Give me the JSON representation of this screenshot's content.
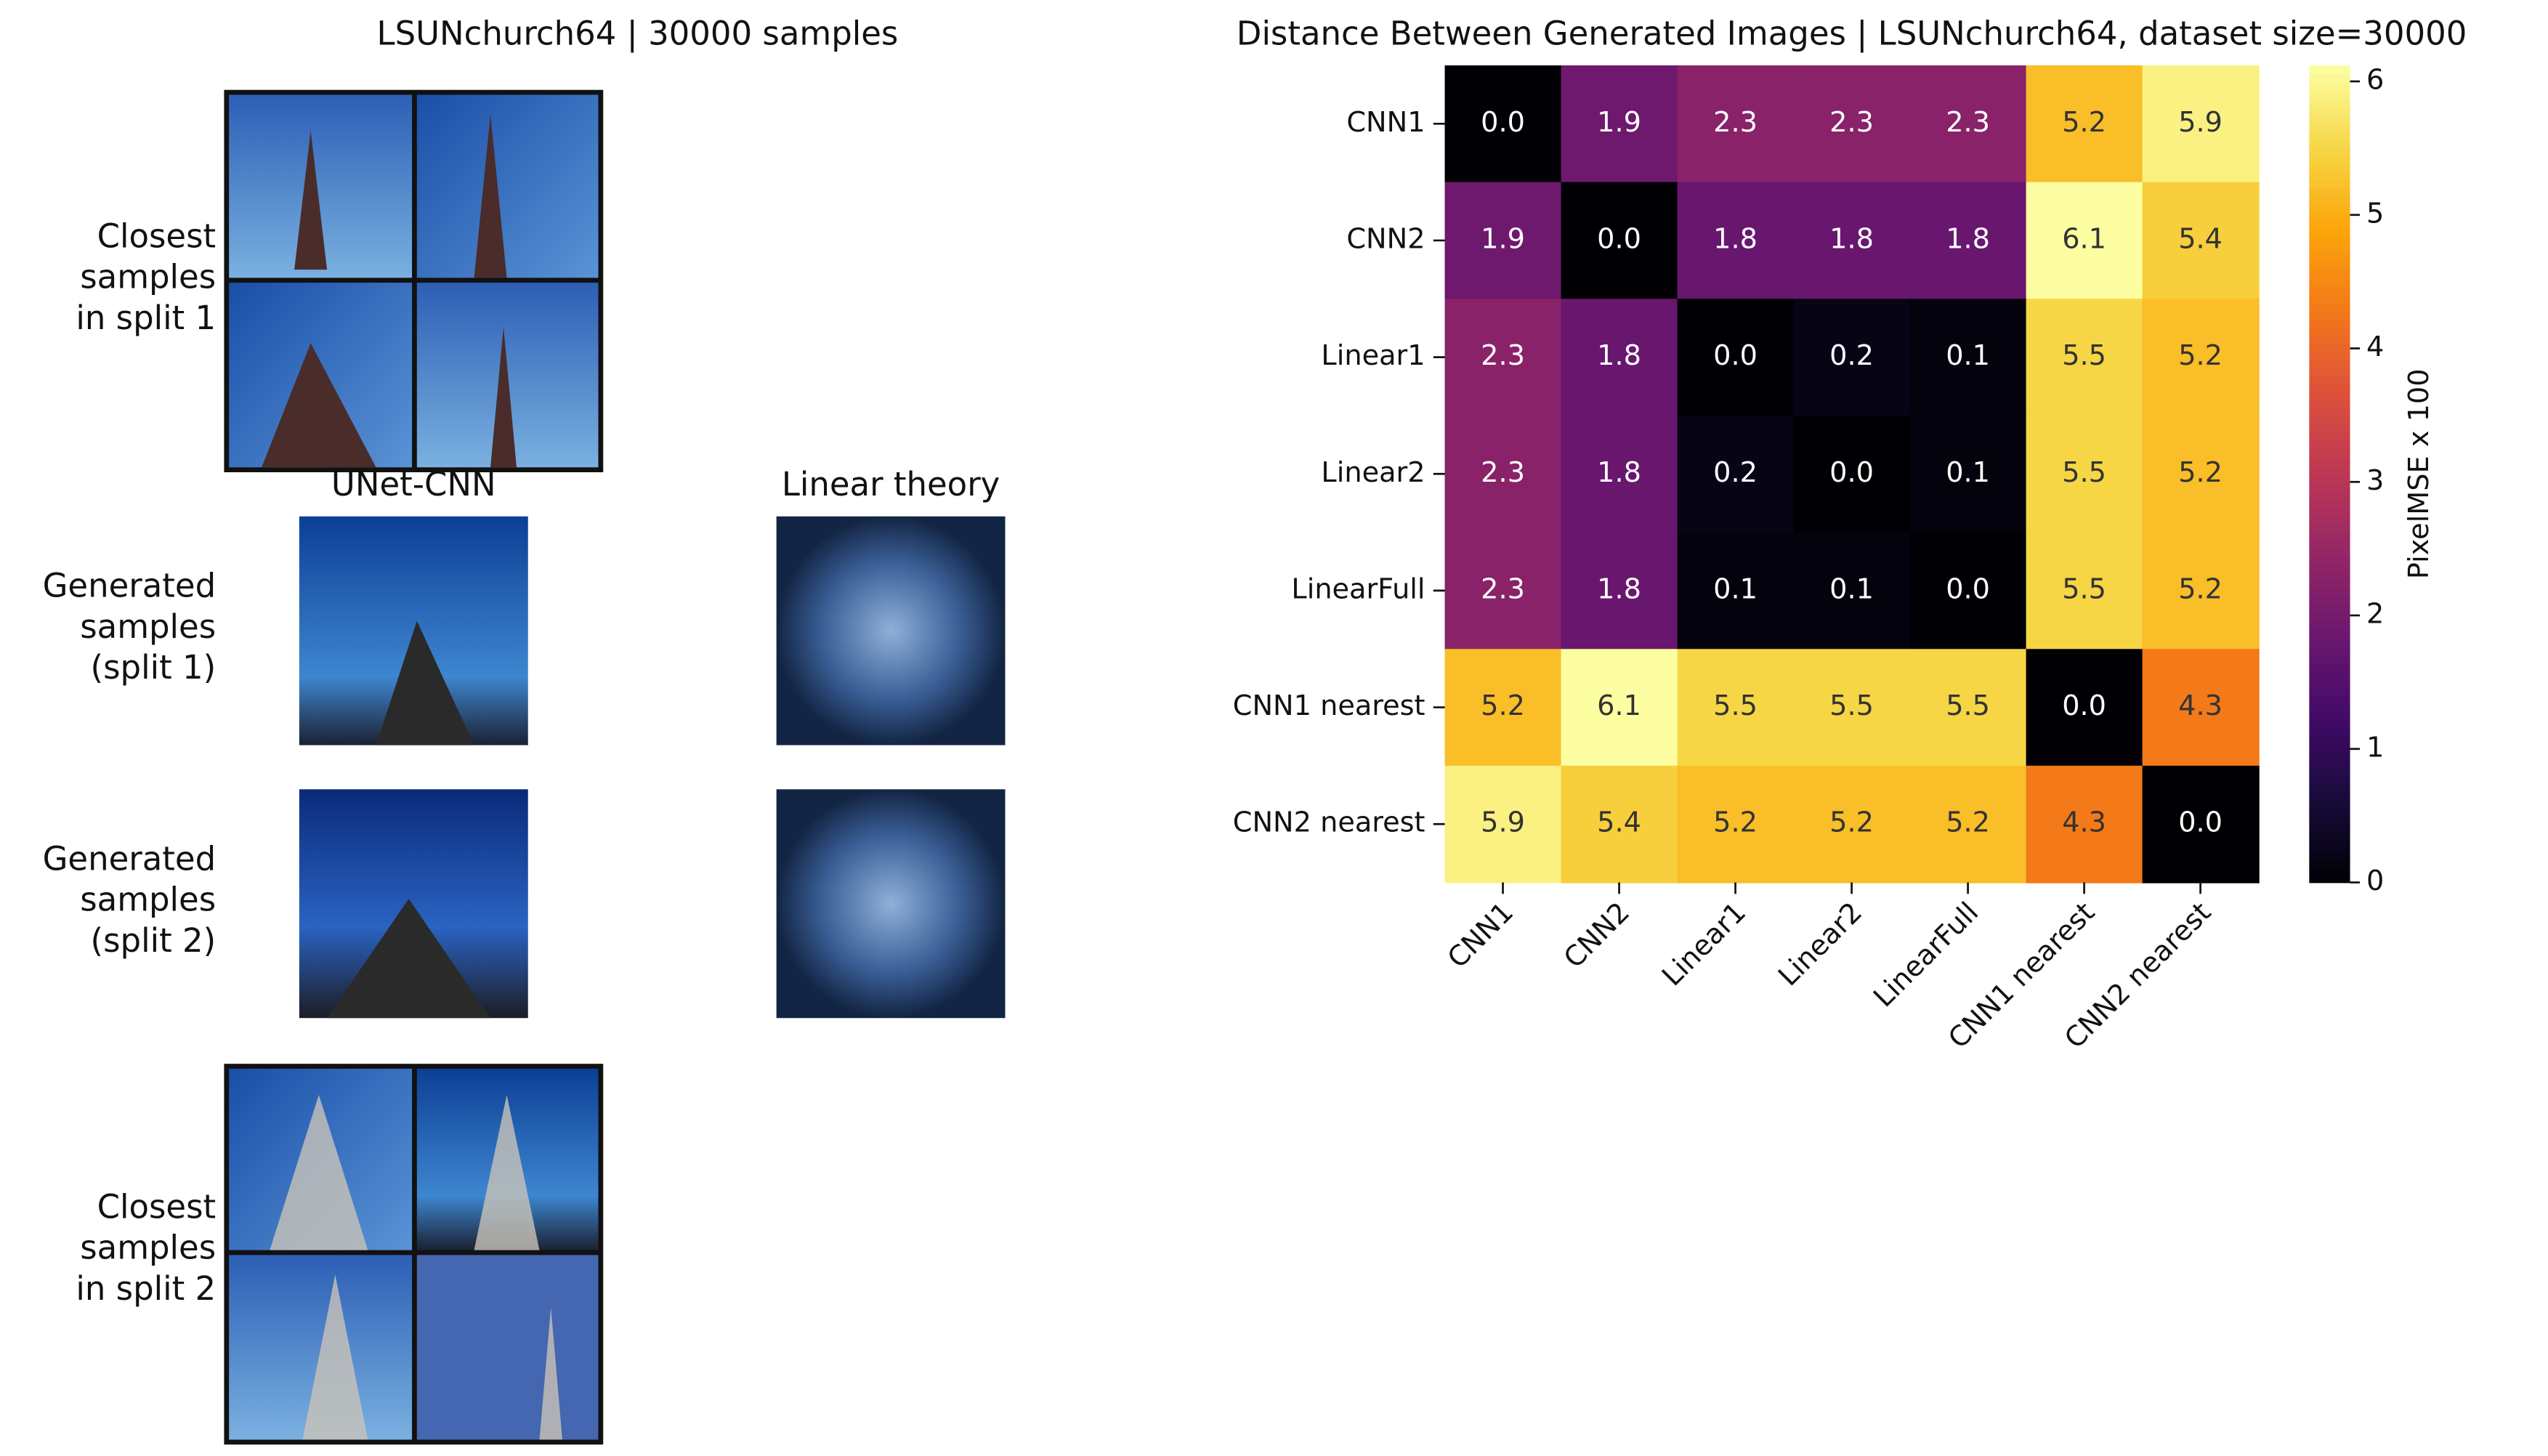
{
  "left_panel": {
    "title": "LSUNchurch64 | 30000 samples",
    "closest_split1": [
      "Closest",
      "samples",
      "in split 1"
    ],
    "column_titles": [
      "UNet-CNN",
      "Linear theory"
    ],
    "generated_split1": [
      "Generated",
      "samples",
      "(split 1)"
    ],
    "generated_split2": [
      "Generated",
      "samples",
      "(split 2)"
    ],
    "closest_split2": [
      "Closest",
      "samples",
      "in split 2"
    ]
  },
  "chart_data": {
    "type": "heatmap",
    "title": "Distance Between Generated Images | LSUNchurch64, dataset size=30000",
    "rows": [
      "CNN1",
      "CNN2",
      "Linear1",
      "Linear2",
      "LinearFull",
      "CNN1 nearest",
      "CNN2 nearest"
    ],
    "columns": [
      "CNN1",
      "CNN2",
      "Linear1",
      "Linear2",
      "LinearFull",
      "CNN1 nearest",
      "CNN2 nearest"
    ],
    "values": [
      [
        0,
        1.9,
        2.3,
        2.3,
        2.3,
        5.2,
        5.9
      ],
      [
        1.9,
        0,
        1.8,
        1.8,
        1.8,
        6.1,
        5.4
      ],
      [
        2.3,
        1.8,
        0,
        0.2,
        0.1,
        5.5,
        5.2
      ],
      [
        2.3,
        1.8,
        0.2,
        0,
        0.1,
        5.5,
        5.2
      ],
      [
        2.3,
        1.8,
        0.1,
        0.1,
        0,
        5.5,
        5.2
      ],
      [
        5.2,
        6.1,
        5.5,
        5.5,
        5.5,
        0,
        4.3
      ],
      [
        5.9,
        5.4,
        5.2,
        5.2,
        5.2,
        4.3,
        0
      ]
    ],
    "value_labels": [
      [
        "0.0",
        "1.9",
        "2.3",
        "2.3",
        "2.3",
        "5.2",
        "5.9"
      ],
      [
        "1.9",
        "0.0",
        "1.8",
        "1.8",
        "1.8",
        "6.1",
        "5.4"
      ],
      [
        "2.3",
        "1.8",
        "0.0",
        "0.2",
        "0.1",
        "5.5",
        "5.2"
      ],
      [
        "2.3",
        "1.8",
        "0.2",
        "0.0",
        "0.1",
        "5.5",
        "5.2"
      ],
      [
        "2.3",
        "1.8",
        "0.1",
        "0.1",
        "0.0",
        "5.5",
        "5.2"
      ],
      [
        "5.2",
        "6.1",
        "5.5",
        "5.5",
        "5.5",
        "0.0",
        "4.3"
      ],
      [
        "5.9",
        "5.4",
        "5.2",
        "5.2",
        "5.2",
        "4.3",
        "0.0"
      ]
    ],
    "colormap": "inferno",
    "zlim": [
      0,
      6.12
    ],
    "colorbar_ticks": [
      0,
      1,
      2,
      3,
      4,
      5,
      6
    ],
    "colorbar_label": "PixelMSE x 100"
  }
}
